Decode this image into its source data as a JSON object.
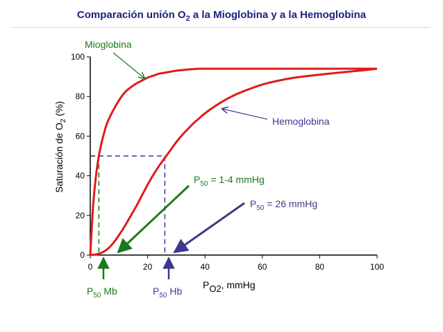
{
  "chart_data": {
    "type": "line",
    "title": {
      "main": "Comparación unión O",
      "sub": "2",
      "rest": " a la Mioglobina y a la Hemoglobina"
    },
    "xlabel": {
      "main": "P",
      "sub": "O2",
      "rest": ", mmHg"
    },
    "ylabel": {
      "main": "Saturación de O",
      "sub": "2",
      "rest": " (%)"
    },
    "xlim": [
      0,
      100
    ],
    "ylim": [
      0,
      100
    ],
    "x_ticks": [
      "0",
      "20",
      "40",
      "60",
      "80",
      "100"
    ],
    "y_ticks": [
      "0",
      "20",
      "40",
      "60",
      "80",
      "100"
    ],
    "series": [
      {
        "name": "Mioglobina",
        "color": "#e01b1b",
        "x": [
          0,
          1,
          2,
          3,
          4,
          5,
          6,
          8,
          10,
          12,
          14,
          16,
          18,
          20,
          22,
          24,
          26,
          28,
          30,
          32,
          34,
          36,
          38,
          40,
          50,
          60,
          70,
          80,
          90,
          100
        ],
        "y": [
          0,
          25,
          40,
          50,
          57,
          62.5,
          67,
          73,
          78,
          82,
          84.5,
          86.5,
          88,
          89.5,
          90.5,
          91.5,
          92,
          92.5,
          93,
          93.3,
          93.6,
          93.8,
          94,
          94,
          94,
          94,
          94,
          94,
          94,
          94
        ]
      },
      {
        "name": "Hemoglobina",
        "color": "#e01b1b",
        "x": [
          0,
          2,
          4,
          6,
          8,
          10,
          12,
          14,
          16,
          18,
          20,
          22,
          24,
          26,
          28,
          30,
          32,
          34,
          36,
          38,
          40,
          45,
          50,
          55,
          60,
          65,
          70,
          75,
          80,
          85,
          90,
          95,
          100
        ],
        "y": [
          0,
          0.3,
          1.2,
          3,
          6,
          10,
          14.5,
          19.5,
          24.5,
          30,
          35.5,
          40.5,
          45,
          49,
          53,
          57,
          60.5,
          63.5,
          66.5,
          69,
          71.5,
          76.5,
          80.5,
          83.5,
          86,
          87.8,
          89.2,
          90.2,
          91,
          91.8,
          92.5,
          93.2,
          94
        ]
      }
    ],
    "p50": [
      {
        "x": 3,
        "y": 50,
        "color": "#1a7a1a",
        "label": {
          "main": "P",
          "sub": "50",
          "rest": " Mb"
        }
      },
      {
        "x": 26,
        "y": 50,
        "color": "#3a3a8c",
        "label": {
          "main": "P",
          "sub": "50",
          "rest": " Hb"
        }
      }
    ],
    "annotations": [
      {
        "id": "mb",
        "text": "Mioglobina",
        "color": "#1a7a1a"
      },
      {
        "id": "hb",
        "text": "Hemoglobina",
        "color": "#3a3a8c"
      },
      {
        "id": "p50mb",
        "main": "P",
        "sub": "50",
        "rest": " = 1-4 mmHg",
        "color": "#1a7a1a"
      },
      {
        "id": "p50hb",
        "main": "P",
        "sub": "50",
        "rest": " = 26 mmHg",
        "color": "#3a3a8c"
      }
    ],
    "grid": false,
    "colors": {
      "title": "#1a237e",
      "axis": "#000000",
      "dash": "#3a3a8c"
    }
  }
}
